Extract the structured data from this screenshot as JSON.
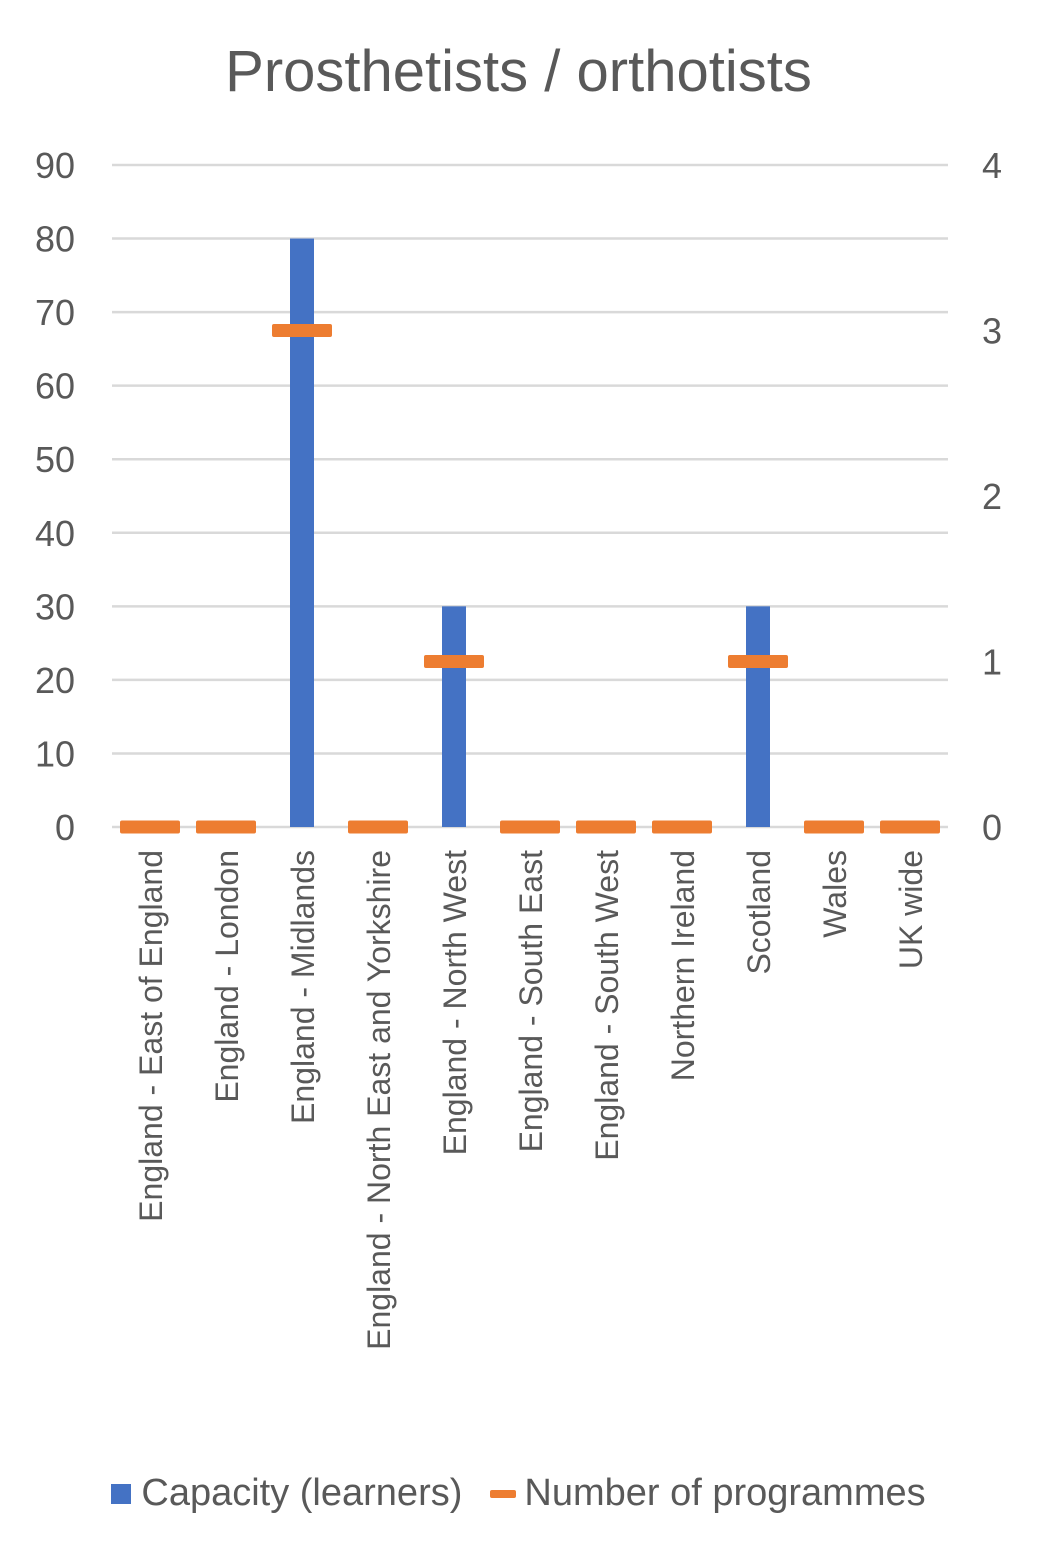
{
  "chart_data": {
    "type": "bar",
    "title": "Prosthetists / orthotists",
    "categories": [
      "England - East of England",
      "England - London",
      "England - Midlands",
      "England - North East and Yorkshire",
      "England - North West",
      "England - South East",
      "England - South West",
      "Northern Ireland",
      "Scotland",
      "Wales",
      "UK wide"
    ],
    "series": [
      {
        "name": "Capacity (learners)",
        "type": "bar",
        "axis": "left",
        "color": "#4472C4",
        "values": [
          0,
          0,
          80,
          0,
          30,
          0,
          0,
          0,
          30,
          0,
          0
        ]
      },
      {
        "name": "Number of programmes",
        "type": "marker",
        "axis": "right",
        "color": "#ED7D31",
        "values": [
          0,
          0,
          3,
          0,
          1,
          0,
          0,
          0,
          1,
          0,
          0
        ]
      }
    ],
    "ylim": [
      0,
      90
    ],
    "yticks": [
      0,
      10,
      20,
      30,
      40,
      50,
      60,
      70,
      80,
      90
    ],
    "y2lim": [
      0,
      4
    ],
    "y2ticks": [
      0,
      1,
      2,
      3,
      4
    ],
    "grid": true,
    "legend_position": "bottom"
  }
}
